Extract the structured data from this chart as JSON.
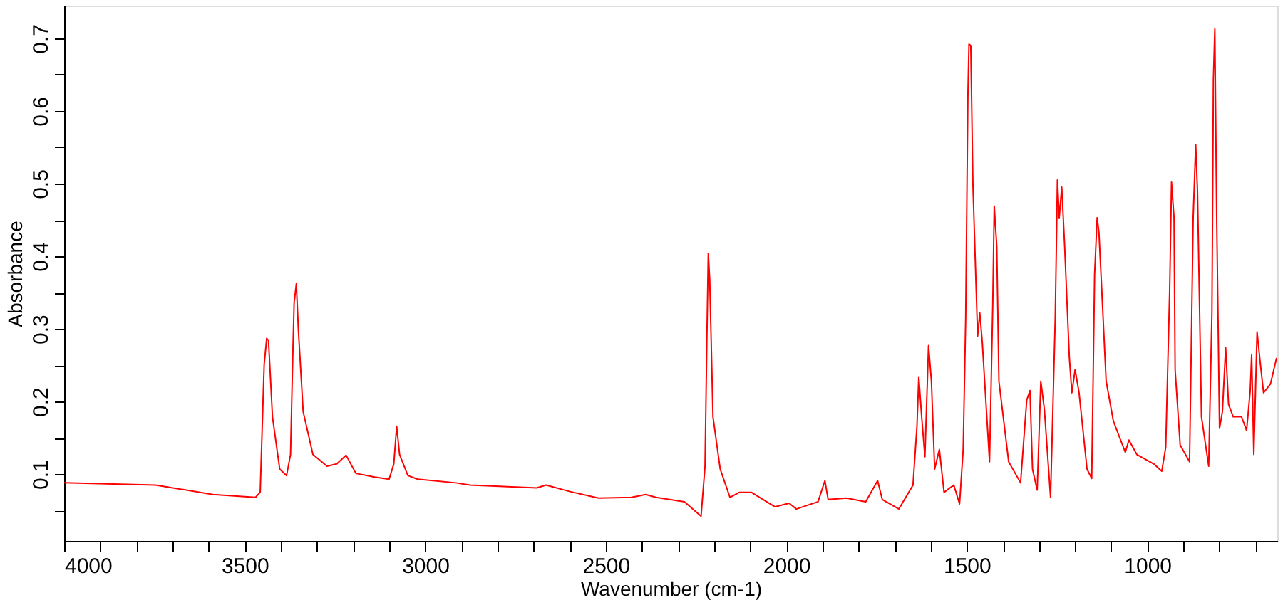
{
  "chart_data": {
    "type": "line",
    "xlabel": "Wavenumber (cm-1)",
    "ylabel": "Absorbance",
    "xlim": [
      4000,
      640
    ],
    "ylim": [
      0.008,
      0.745
    ],
    "xticks": [
      4000,
      {
        "value": 3900,
        "label": null
      },
      {
        "value": 3800,
        "label": null
      },
      {
        "value": 3700,
        "label": null
      },
      {
        "value": 3600,
        "label": null
      },
      3500,
      {
        "value": 3400,
        "label": null
      },
      {
        "value": 3300,
        "label": null
      },
      {
        "value": 3200,
        "label": null
      },
      {
        "value": 3100,
        "label": null
      },
      3000,
      {
        "value": 2900,
        "label": null
      },
      {
        "value": 2800,
        "label": null
      },
      {
        "value": 2700,
        "label": null
      },
      {
        "value": 2600,
        "label": null
      },
      2500,
      {
        "value": 2400,
        "label": null
      },
      {
        "value": 2300,
        "label": null
      },
      {
        "value": 2200,
        "label": null
      },
      {
        "value": 2100,
        "label": null
      },
      2000,
      {
        "value": 1900,
        "label": null
      },
      {
        "value": 1800,
        "label": null
      },
      {
        "value": 1700,
        "label": null
      },
      {
        "value": 1600,
        "label": null
      },
      1500,
      {
        "value": 1400,
        "label": null
      },
      {
        "value": 1300,
        "label": null
      },
      {
        "value": 1200,
        "label": null
      },
      {
        "value": 1100,
        "label": null
      },
      1000,
      {
        "value": 900,
        "label": null
      },
      {
        "value": 800,
        "label": null
      },
      {
        "value": 700,
        "label": null
      }
    ],
    "yticks": [
      {
        "value": 0.05,
        "label": null
      },
      0.1,
      {
        "value": 0.15,
        "label": null
      },
      0.2,
      {
        "value": 0.25,
        "label": null
      },
      0.3,
      {
        "value": 0.35,
        "label": null
      },
      0.4,
      {
        "value": 0.45,
        "label": null
      },
      0.5,
      {
        "value": 0.55,
        "label": null
      },
      0.6,
      {
        "value": 0.65,
        "label": null
      },
      0.7
    ],
    "grid": false,
    "marker": "none",
    "line_style": "solid",
    "series": [
      {
        "color": "#ff0000",
        "x": [
          4000,
          3747,
          3588,
          3470,
          3457,
          3446,
          3439,
          3434,
          3423,
          3403,
          3384,
          3373,
          3367,
          3363,
          3357,
          3351,
          3338,
          3311,
          3272,
          3245,
          3219,
          3192,
          3140,
          3100,
          3087,
          3079,
          3071,
          3048,
          3021,
          2915,
          2876,
          2691,
          2665,
          2599,
          2520,
          2429,
          2389,
          2361,
          2282,
          2236,
          2225,
          2220,
          2216,
          2212,
          2203,
          2183,
          2156,
          2130,
          2097,
          2031,
          1992,
          1972,
          1912,
          1893,
          1884,
          1833,
          1780,
          1747,
          1734,
          1688,
          1649,
          1638,
          1633,
          1625,
          1616,
          1606,
          1598,
          1589,
          1576,
          1563,
          1536,
          1520,
          1510,
          1503,
          1497,
          1494,
          1489,
          1483,
          1470,
          1464,
          1457,
          1437,
          1428,
          1424,
          1417,
          1411,
          1384,
          1351,
          1334,
          1325,
          1318,
          1305,
          1295,
          1285,
          1268,
          1255,
          1249,
          1244,
          1237,
          1229,
          1216,
          1209,
          1200,
          1189,
          1167,
          1154,
          1146,
          1139,
          1134,
          1127,
          1114,
          1094,
          1061,
          1051,
          1029,
          982,
          960,
          949,
          938,
          933,
          926,
          923,
          909,
          883,
          873,
          866,
          861,
          850,
          830,
          821,
          817,
          813,
          808,
          800,
          792,
          783,
          775,
          762,
          739,
          725,
          715,
          711,
          705,
          696,
          688,
          678,
          659,
          642
        ],
        "values": [
          0.088,
          0.085,
          0.072,
          0.068,
          0.075,
          0.251,
          0.287,
          0.284,
          0.179,
          0.107,
          0.098,
          0.127,
          0.258,
          0.336,
          0.362,
          0.296,
          0.186,
          0.127,
          0.111,
          0.114,
          0.126,
          0.101,
          0.096,
          0.093,
          0.114,
          0.166,
          0.127,
          0.098,
          0.093,
          0.088,
          0.085,
          0.081,
          0.085,
          0.076,
          0.067,
          0.068,
          0.072,
          0.068,
          0.062,
          0.042,
          0.111,
          0.283,
          0.404,
          0.368,
          0.179,
          0.107,
          0.068,
          0.075,
          0.075,
          0.055,
          0.06,
          0.052,
          0.062,
          0.091,
          0.065,
          0.067,
          0.062,
          0.091,
          0.065,
          0.052,
          0.085,
          0.166,
          0.234,
          0.179,
          0.124,
          0.277,
          0.228,
          0.107,
          0.134,
          0.075,
          0.085,
          0.059,
          0.134,
          0.316,
          0.619,
          0.692,
          0.69,
          0.498,
          0.29,
          0.322,
          0.281,
          0.117,
          0.335,
          0.469,
          0.414,
          0.228,
          0.117,
          0.088,
          0.202,
          0.215,
          0.107,
          0.078,
          0.228,
          0.189,
          0.068,
          0.316,
          0.505,
          0.453,
          0.495,
          0.414,
          0.261,
          0.212,
          0.244,
          0.212,
          0.107,
          0.094,
          0.375,
          0.453,
          0.433,
          0.362,
          0.228,
          0.173,
          0.13,
          0.147,
          0.127,
          0.114,
          0.104,
          0.137,
          0.355,
          0.502,
          0.453,
          0.244,
          0.14,
          0.117,
          0.453,
          0.554,
          0.489,
          0.179,
          0.111,
          0.323,
          0.642,
          0.713,
          0.459,
          0.163,
          0.186,
          0.274,
          0.196,
          0.179,
          0.179,
          0.16,
          0.215,
          0.264,
          0.127,
          0.296,
          0.257,
          0.212,
          0.224,
          0.26
        ]
      }
    ]
  }
}
